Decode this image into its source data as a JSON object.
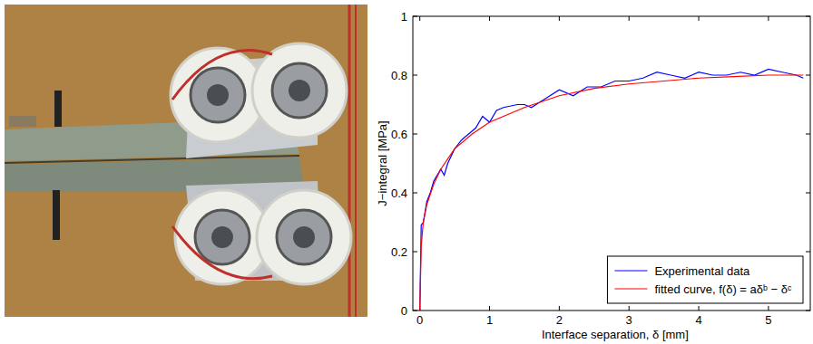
{
  "chart_data": {
    "type": "line",
    "x_label": "Interface separation, δ [mm]",
    "y_label": "J−integral [MPa]",
    "xlim": [
      -0.1,
      5.6
    ],
    "xticks": [
      0,
      1,
      2,
      3,
      4,
      5
    ],
    "ylim": [
      0,
      1
    ],
    "yticks": [
      0,
      0.2,
      0.4,
      0.6,
      0.8,
      1
    ],
    "grid": false,
    "legend": "lower right",
    "series": [
      {
        "name": "Experimental data",
        "color": "#0000ff",
        "line_style": "solid",
        "x": [
          0,
          0.02,
          0.05,
          0.1,
          0.15,
          0.2,
          0.3,
          0.35,
          0.4,
          0.5,
          0.6,
          0.7,
          0.8,
          0.9,
          1.0,
          1.1,
          1.2,
          1.4,
          1.5,
          1.6,
          1.8,
          2.0,
          2.2,
          2.4,
          2.6,
          2.8,
          3.0,
          3.2,
          3.4,
          3.6,
          3.8,
          4.0,
          4.2,
          4.4,
          4.6,
          4.8,
          5.0,
          5.2,
          5.4,
          5.5
        ],
        "values": [
          0,
          0.29,
          0.3,
          0.37,
          0.4,
          0.44,
          0.48,
          0.46,
          0.5,
          0.55,
          0.58,
          0.6,
          0.62,
          0.66,
          0.64,
          0.68,
          0.69,
          0.7,
          0.7,
          0.69,
          0.72,
          0.75,
          0.73,
          0.76,
          0.76,
          0.78,
          0.78,
          0.79,
          0.81,
          0.8,
          0.79,
          0.81,
          0.8,
          0.8,
          0.81,
          0.8,
          0.82,
          0.81,
          0.8,
          0.79
        ]
      },
      {
        "name": "fitted curve, f(δ) = aδᵇ − δᶜ",
        "color": "#ff0000",
        "line_style": "solid",
        "x": [
          0,
          0.02,
          0.05,
          0.1,
          0.2,
          0.3,
          0.5,
          0.75,
          1,
          1.5,
          2,
          2.5,
          3,
          3.5,
          4,
          4.5,
          5,
          5.5
        ],
        "values": [
          0,
          0.22,
          0.3,
          0.36,
          0.43,
          0.48,
          0.55,
          0.6,
          0.64,
          0.69,
          0.73,
          0.755,
          0.77,
          0.78,
          0.79,
          0.795,
          0.8,
          0.8
        ]
      }
    ]
  }
}
